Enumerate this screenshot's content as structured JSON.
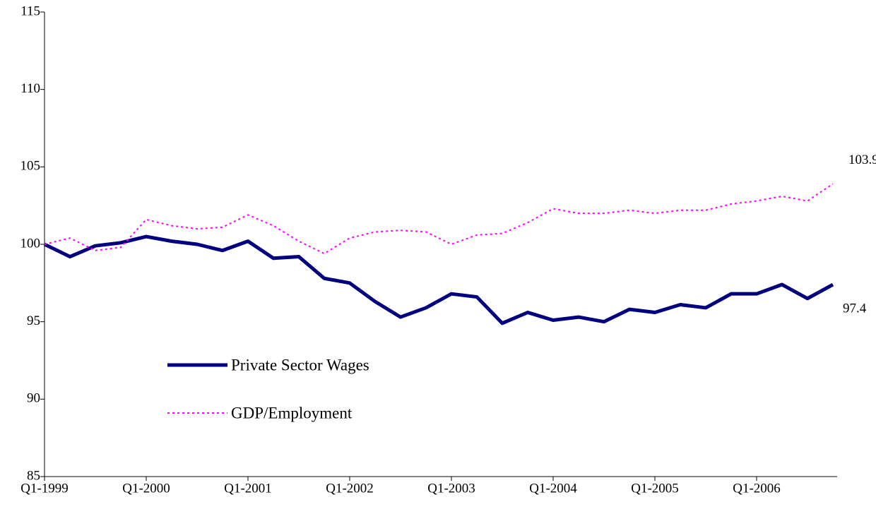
{
  "chart_data": {
    "type": "line",
    "categories": [
      "Q1-1999",
      null,
      null,
      null,
      "Q1-2000",
      null,
      null,
      null,
      "Q1-2001",
      null,
      null,
      null,
      "Q1-2002",
      null,
      null,
      null,
      "Q1-2003",
      null,
      null,
      null,
      "Q1-2004",
      null,
      null,
      null,
      "Q1-2005",
      null,
      null,
      null,
      "Q1-2006",
      null,
      null,
      null
    ],
    "series": [
      {
        "name": "Private Sector Wages",
        "color": "#000080",
        "style": "solid",
        "values": [
          100,
          99.2,
          99.9,
          100.1,
          100.5,
          100.2,
          100.0,
          99.6,
          100.2,
          99.1,
          99.2,
          97.8,
          97.5,
          96.3,
          95.3,
          95.9,
          96.8,
          96.6,
          94.9,
          95.6,
          95.1,
          95.3,
          95.0,
          95.8,
          95.6,
          96.1,
          95.9,
          96.8,
          96.8,
          97.4,
          96.5,
          97.4
        ]
      },
      {
        "name": "GDP/Employment",
        "color": "#ff00ff",
        "style": "dotted",
        "values": [
          100,
          100.4,
          99.6,
          99.8,
          101.6,
          101.2,
          101.0,
          101.1,
          101.9,
          101.2,
          100.2,
          99.4,
          100.4,
          100.8,
          100.9,
          100.8,
          100.0,
          100.6,
          100.7,
          101.4,
          102.3,
          102.0,
          102.0,
          102.2,
          102.0,
          102.2,
          102.2,
          102.6,
          102.8,
          103.1,
          102.8,
          103.9
        ]
      }
    ],
    "ylim": [
      85,
      115
    ],
    "yticks": [
      85,
      90,
      95,
      100,
      105,
      110,
      115
    ],
    "grid": false,
    "legend": "lower left"
  }
}
